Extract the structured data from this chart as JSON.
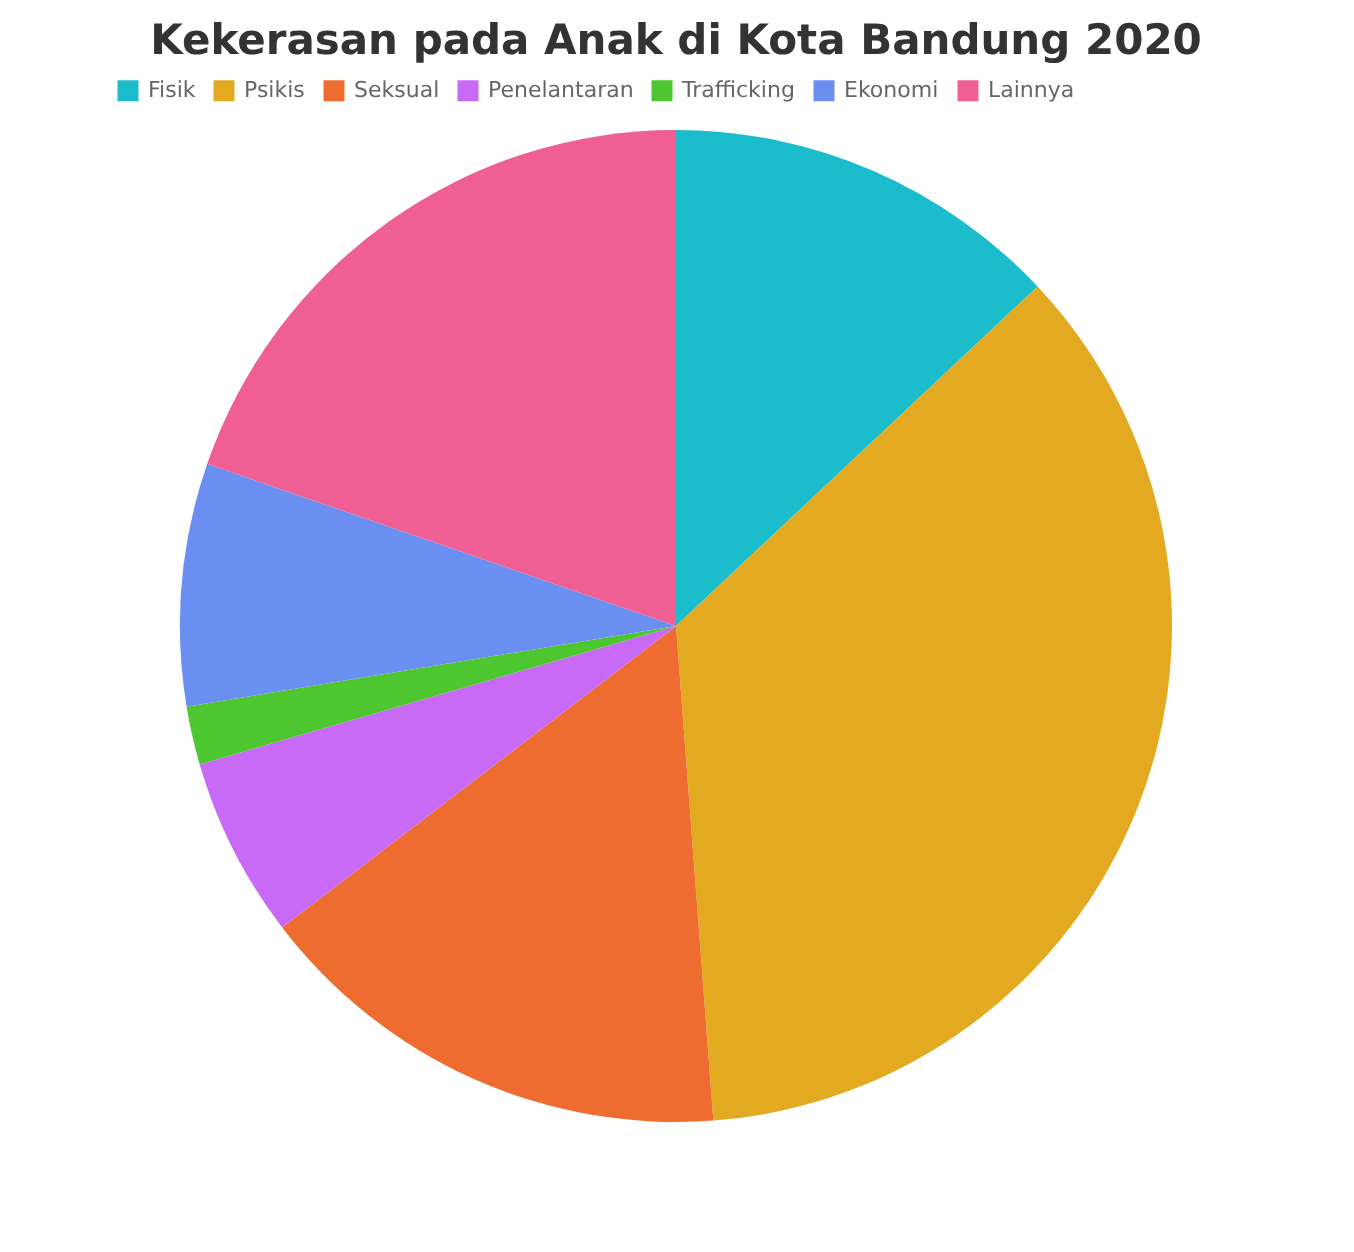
{
  "chart_data": {
    "type": "pie",
    "title": "Kekerasan pada Anak di Kota Bandung 2020",
    "categories": [
      "Fisik",
      "Psikis",
      "Seksual",
      "Penelantaran",
      "Trafficking",
      "Ekonomi",
      "Lainnya"
    ],
    "values": [
      13,
      35.8,
      15.8,
      5.9,
      1.9,
      7.9,
      19.7
    ],
    "colors": [
      "#1bbccb",
      "#e3a921",
      "#ef6c30",
      "#c86af5",
      "#4dc62f",
      "#6b8ff0",
      "#ef5f93"
    ],
    "legend": "top"
  }
}
